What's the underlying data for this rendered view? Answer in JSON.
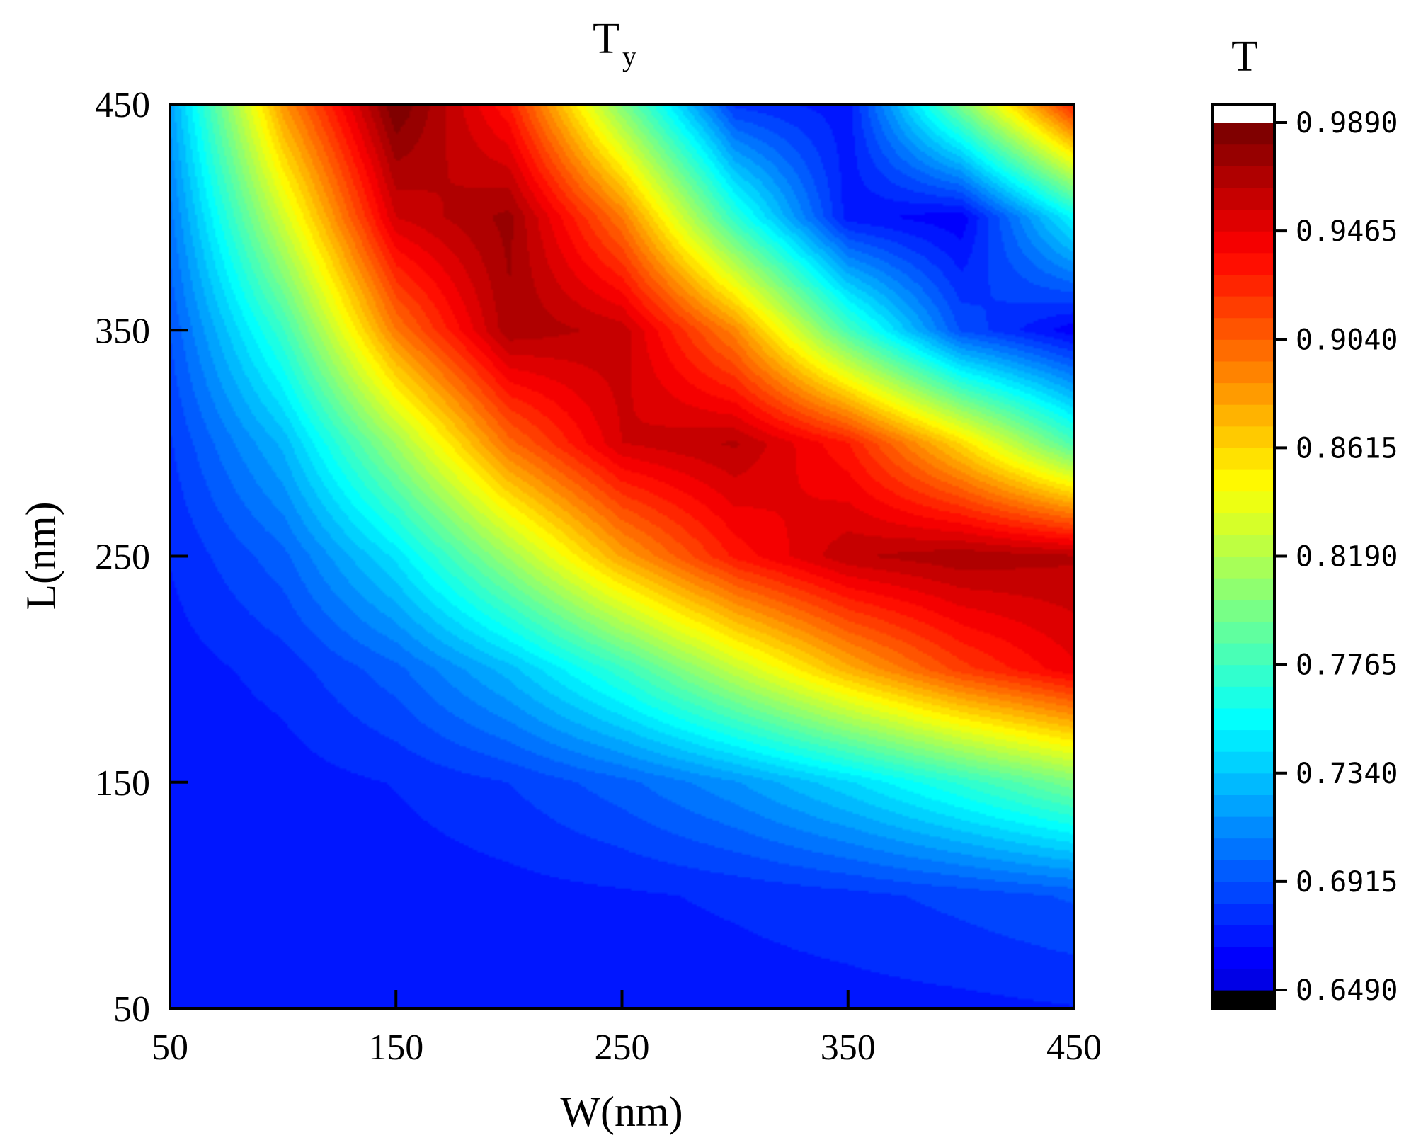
{
  "chart_data": {
    "type": "heatmap",
    "title": "T",
    "title_subscript": "y",
    "xlabel": "W(nm)",
    "ylabel": "L(nm)",
    "xlim": [
      50,
      450
    ],
    "ylim": [
      50,
      450
    ],
    "x_ticks": [
      "50",
      "150",
      "250",
      "350",
      "450"
    ],
    "y_ticks": [
      "50",
      "150",
      "250",
      "350",
      "450"
    ],
    "x_tick_values": [
      50,
      150,
      250,
      350,
      450
    ],
    "y_tick_values": [
      50,
      150,
      250,
      350,
      450
    ],
    "colorbar": {
      "label": "T",
      "min": 0.649,
      "max": 0.989,
      "ticks": [
        "0.6490",
        "0.6915",
        "0.7340",
        "0.7765",
        "0.8190",
        "0.8615",
        "0.9040",
        "0.9465",
        "0.9890"
      ],
      "tick_values": [
        0.649,
        0.6915,
        0.734,
        0.7765,
        0.819,
        0.8615,
        0.904,
        0.9465,
        0.989
      ],
      "colormap": "jet",
      "under_color": "#000000",
      "over_color": "#ffffff",
      "levels": 40
    },
    "x_grid": [
      50,
      100,
      150,
      200,
      250,
      300,
      350,
      400,
      450
    ],
    "y_grid": [
      50,
      100,
      150,
      200,
      250,
      300,
      350,
      400,
      450
    ],
    "values_by_L_rows": [
      [
        0.666,
        0.667,
        0.667,
        0.668,
        0.669,
        0.67,
        0.671,
        0.672,
        0.674
      ],
      [
        0.667,
        0.668,
        0.669,
        0.671,
        0.673,
        0.676,
        0.68,
        0.686,
        0.693
      ],
      [
        0.668,
        0.67,
        0.675,
        0.683,
        0.697,
        0.716,
        0.741,
        0.77,
        0.8
      ],
      [
        0.67,
        0.678,
        0.697,
        0.73,
        0.774,
        0.825,
        0.875,
        0.917,
        0.945
      ],
      [
        0.675,
        0.697,
        0.745,
        0.812,
        0.88,
        0.932,
        0.962,
        0.97,
        0.965
      ],
      [
        0.682,
        0.728,
        0.812,
        0.9,
        0.955,
        0.965,
        0.93,
        0.86,
        0.78
      ],
      [
        0.692,
        0.775,
        0.895,
        0.97,
        0.96,
        0.89,
        0.78,
        0.69,
        0.66
      ],
      [
        0.705,
        0.83,
        0.955,
        0.975,
        0.895,
        0.77,
        0.67,
        0.66,
        0.755
      ],
      [
        0.72,
        0.885,
        0.99,
        0.93,
        0.8,
        0.68,
        0.67,
        0.8,
        0.93
      ]
    ]
  }
}
